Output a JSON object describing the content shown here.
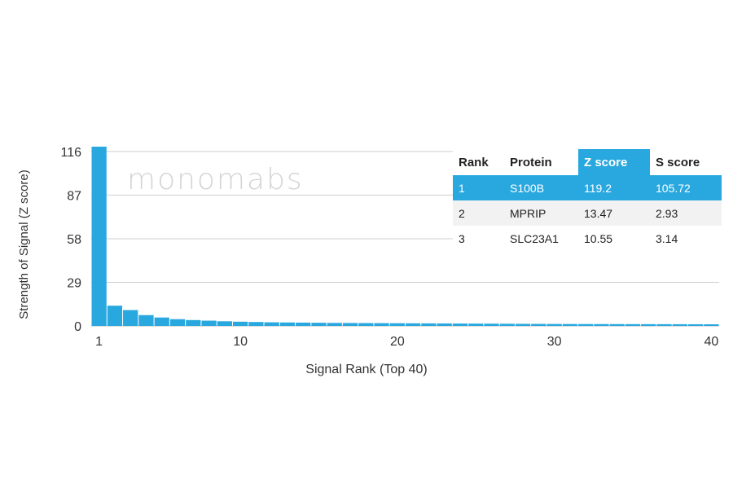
{
  "chart_data": {
    "type": "bar",
    "xlabel": "Signal Rank (Top 40)",
    "ylabel": "Strength of Signal (Z score)",
    "yticks": [
      0,
      29,
      58,
      87,
      116
    ],
    "ylim": [
      0,
      119.2
    ],
    "xticks": [
      1,
      10,
      20,
      30,
      40
    ],
    "x": [
      1,
      2,
      3,
      4,
      5,
      6,
      7,
      8,
      9,
      10,
      11,
      12,
      13,
      14,
      15,
      16,
      17,
      18,
      19,
      20,
      21,
      22,
      23,
      24,
      25,
      26,
      27,
      28,
      29,
      30,
      31,
      32,
      33,
      34,
      35,
      36,
      37,
      38,
      39,
      40
    ],
    "values": [
      119.2,
      13.47,
      10.55,
      7.2,
      5.6,
      4.5,
      3.9,
      3.5,
      3.1,
      2.8,
      2.6,
      2.4,
      2.3,
      2.2,
      2.1,
      2.0,
      1.95,
      1.9,
      1.85,
      1.8,
      1.75,
      1.7,
      1.65,
      1.6,
      1.55,
      1.5,
      1.45,
      1.4,
      1.35,
      1.3,
      1.28,
      1.26,
      1.24,
      1.22,
      1.2,
      1.18,
      1.16,
      1.14,
      1.12,
      1.1
    ],
    "bar_color": "#29a8e0",
    "grid": true
  },
  "watermark": "monomabs",
  "table": {
    "headers": [
      "Rank",
      "Protein",
      "Z score",
      "S score"
    ],
    "rows": [
      [
        "1",
        "S100B",
        "119.2",
        "105.72"
      ],
      [
        "2",
        "MPRIP",
        "13.47",
        "2.93"
      ],
      [
        "3",
        "SLC23A1",
        "10.55",
        "3.14"
      ]
    ],
    "highlight_color": "#29a8e0"
  }
}
